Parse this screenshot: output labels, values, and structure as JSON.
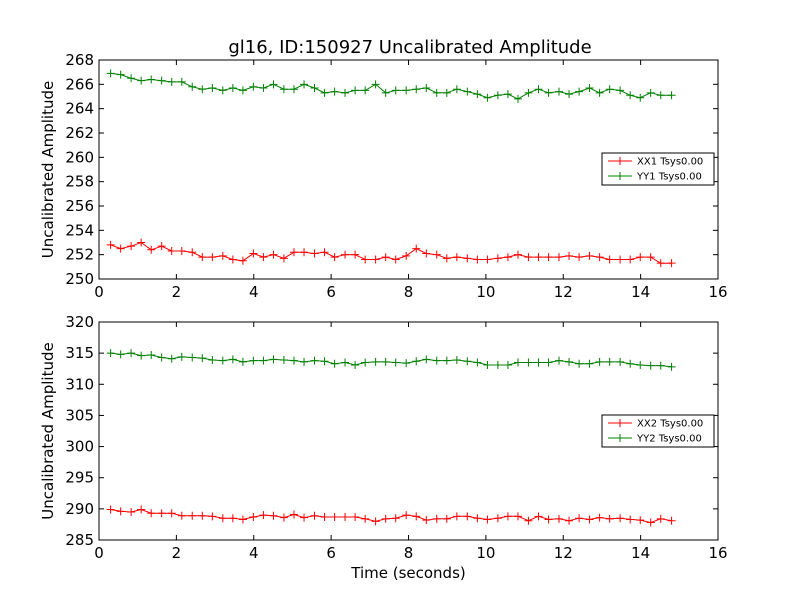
{
  "title": "gl16, ID:150927 Uncalibrated Amplitude",
  "colors": {
    "red": "#ff0000",
    "green": "#008000",
    "axis": "#000000"
  },
  "chart_data": [
    {
      "type": "line",
      "ylabel": "Uncalibrated Amplitude",
      "xlabel": "",
      "xlim": [
        0,
        16
      ],
      "ylim": [
        250,
        268
      ],
      "xticks": [
        "0",
        "2",
        "4",
        "6",
        "8",
        "10",
        "12",
        "14",
        "16"
      ],
      "yticks": [
        "250",
        "252",
        "254",
        "256",
        "258",
        "260",
        "262",
        "264",
        "266",
        "268"
      ],
      "legend_position": "center-right",
      "series": [
        {
          "name": "XX1 Tsys0.00",
          "color": "#ff0000",
          "x": [
            0.3,
            0.56,
            0.83,
            1.09,
            1.35,
            1.62,
            1.88,
            2.14,
            2.41,
            2.67,
            2.93,
            3.2,
            3.46,
            3.72,
            3.99,
            4.25,
            4.51,
            4.78,
            5.04,
            5.3,
            5.57,
            5.83,
            6.09,
            6.36,
            6.62,
            6.88,
            7.15,
            7.41,
            7.67,
            7.94,
            8.2,
            8.46,
            8.73,
            8.99,
            9.25,
            9.52,
            9.78,
            10.04,
            10.31,
            10.57,
            10.83,
            11.1,
            11.36,
            11.62,
            11.89,
            12.15,
            12.41,
            12.68,
            12.94,
            13.2,
            13.47,
            13.73,
            13.99,
            14.26,
            14.52,
            14.8
          ],
          "y": [
            252.8,
            252.5,
            252.7,
            253.0,
            252.4,
            252.7,
            252.3,
            252.3,
            252.2,
            251.8,
            251.8,
            251.9,
            251.6,
            251.5,
            252.1,
            251.8,
            252.0,
            251.7,
            252.2,
            252.2,
            252.1,
            252.2,
            251.8,
            252.0,
            252.0,
            251.6,
            251.6,
            251.8,
            251.6,
            251.9,
            252.5,
            252.1,
            252.0,
            251.7,
            251.8,
            251.7,
            251.6,
            251.6,
            251.7,
            251.8,
            252.0,
            251.8,
            251.8,
            251.8,
            251.8,
            251.9,
            251.8,
            251.9,
            251.8,
            251.6,
            251.6,
            251.6,
            251.8,
            251.8,
            251.3,
            251.3
          ]
        },
        {
          "name": "YY1 Tsys0.00",
          "color": "#008000",
          "x": [
            0.3,
            0.56,
            0.83,
            1.09,
            1.35,
            1.62,
            1.88,
            2.14,
            2.41,
            2.67,
            2.93,
            3.2,
            3.46,
            3.72,
            3.99,
            4.25,
            4.51,
            4.78,
            5.04,
            5.3,
            5.57,
            5.83,
            6.09,
            6.36,
            6.62,
            6.88,
            7.15,
            7.41,
            7.67,
            7.94,
            8.2,
            8.46,
            8.73,
            8.99,
            9.25,
            9.52,
            9.78,
            10.04,
            10.31,
            10.57,
            10.83,
            11.1,
            11.36,
            11.62,
            11.89,
            12.15,
            12.41,
            12.68,
            12.94,
            13.2,
            13.47,
            13.73,
            13.99,
            14.26,
            14.52,
            14.8
          ],
          "y": [
            266.9,
            266.8,
            266.5,
            266.3,
            266.4,
            266.3,
            266.2,
            266.2,
            265.8,
            265.6,
            265.7,
            265.5,
            265.7,
            265.5,
            265.8,
            265.7,
            266.0,
            265.6,
            265.6,
            266.0,
            265.7,
            265.3,
            265.4,
            265.3,
            265.5,
            265.5,
            266.0,
            265.3,
            265.5,
            265.5,
            265.6,
            265.7,
            265.3,
            265.3,
            265.6,
            265.4,
            265.2,
            264.9,
            265.1,
            265.2,
            264.8,
            265.3,
            265.6,
            265.3,
            265.4,
            265.2,
            265.4,
            265.7,
            265.3,
            265.6,
            265.5,
            265.1,
            264.9,
            265.3,
            265.1,
            265.1
          ]
        }
      ]
    },
    {
      "type": "line",
      "ylabel": "Uncalibrated Amplitude",
      "xlabel": "Time (seconds)",
      "xlim": [
        0,
        16
      ],
      "ylim": [
        285,
        320
      ],
      "xticks": [
        "0",
        "2",
        "4",
        "6",
        "8",
        "10",
        "12",
        "14",
        "16"
      ],
      "yticks": [
        "285",
        "290",
        "295",
        "300",
        "305",
        "310",
        "315",
        "320"
      ],
      "legend_position": "center-right",
      "series": [
        {
          "name": "XX2 Tsys0.00",
          "color": "#ff0000",
          "x": [
            0.3,
            0.56,
            0.83,
            1.09,
            1.35,
            1.62,
            1.88,
            2.14,
            2.41,
            2.67,
            2.93,
            3.2,
            3.46,
            3.72,
            3.99,
            4.25,
            4.51,
            4.78,
            5.04,
            5.3,
            5.57,
            5.83,
            6.09,
            6.36,
            6.62,
            6.88,
            7.15,
            7.41,
            7.67,
            7.94,
            8.2,
            8.46,
            8.73,
            8.99,
            9.25,
            9.52,
            9.78,
            10.04,
            10.31,
            10.57,
            10.83,
            11.1,
            11.36,
            11.62,
            11.89,
            12.15,
            12.41,
            12.68,
            12.94,
            13.2,
            13.47,
            13.73,
            13.99,
            14.26,
            14.52,
            14.8
          ],
          "y": [
            289.9,
            289.6,
            289.5,
            289.9,
            289.3,
            289.3,
            289.3,
            288.9,
            288.9,
            288.9,
            288.8,
            288.5,
            288.5,
            288.3,
            288.7,
            289.0,
            288.9,
            288.6,
            289.1,
            288.6,
            288.9,
            288.7,
            288.7,
            288.7,
            288.7,
            288.4,
            288.0,
            288.4,
            288.5,
            289.0,
            288.8,
            288.2,
            288.4,
            288.4,
            288.8,
            288.8,
            288.5,
            288.3,
            288.5,
            288.8,
            288.8,
            288.1,
            288.8,
            288.3,
            288.4,
            288.1,
            288.5,
            288.3,
            288.6,
            288.4,
            288.5,
            288.3,
            288.2,
            287.8,
            288.4,
            288.1
          ]
        },
        {
          "name": "YY2 Tsys0.00",
          "color": "#008000",
          "x": [
            0.3,
            0.56,
            0.83,
            1.09,
            1.35,
            1.62,
            1.88,
            2.14,
            2.41,
            2.67,
            2.93,
            3.2,
            3.46,
            3.72,
            3.99,
            4.25,
            4.51,
            4.78,
            5.04,
            5.3,
            5.57,
            5.83,
            6.09,
            6.36,
            6.62,
            6.88,
            7.15,
            7.41,
            7.67,
            7.94,
            8.2,
            8.46,
            8.73,
            8.99,
            9.25,
            9.52,
            9.78,
            10.04,
            10.31,
            10.57,
            10.83,
            11.1,
            11.36,
            11.62,
            11.89,
            12.15,
            12.41,
            12.68,
            12.94,
            13.2,
            13.47,
            13.73,
            13.99,
            14.26,
            14.52,
            14.8
          ],
          "y": [
            315.0,
            314.8,
            315.0,
            314.6,
            314.7,
            314.3,
            314.1,
            314.4,
            314.3,
            314.2,
            313.9,
            313.8,
            314.0,
            313.6,
            313.8,
            313.8,
            314.0,
            313.9,
            313.8,
            313.6,
            313.8,
            313.7,
            313.3,
            313.5,
            313.1,
            313.5,
            313.6,
            313.6,
            313.5,
            313.4,
            313.7,
            314.0,
            313.8,
            313.8,
            313.9,
            313.7,
            313.5,
            313.1,
            313.1,
            313.1,
            313.5,
            313.5,
            313.5,
            313.5,
            313.8,
            313.6,
            313.3,
            313.3,
            313.6,
            313.6,
            313.6,
            313.3,
            313.1,
            313.0,
            313.0,
            312.8
          ]
        }
      ]
    }
  ]
}
